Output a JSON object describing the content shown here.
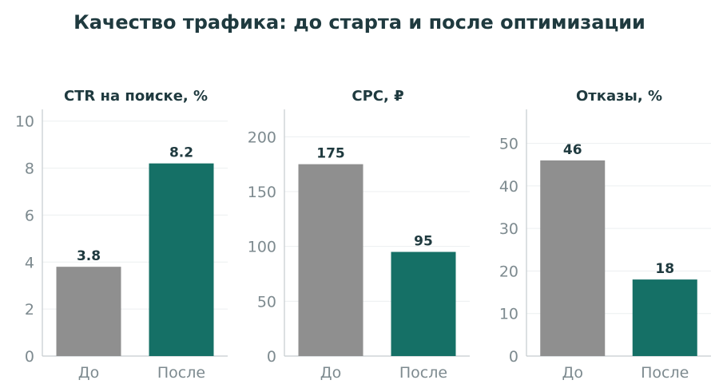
{
  "title": "Качество трафика: до старта и после оптимизации",
  "colors": {
    "before": "#8f8f8f",
    "after": "#157066"
  },
  "chart_data": [
    {
      "type": "bar",
      "title": "CTR на поиске, %",
      "categories": [
        "До",
        "После"
      ],
      "values": [
        3.8,
        8.2
      ],
      "value_labels": [
        "3.8",
        "8.2"
      ],
      "ylim": [
        0,
        10.5
      ],
      "yticks": [
        0,
        2,
        4,
        6,
        8,
        10
      ],
      "ytick_labels": [
        "0",
        "2",
        "4",
        "6",
        "8",
        "10"
      ],
      "grid": true
    },
    {
      "type": "bar",
      "title": "CPC, ₽",
      "categories": [
        "До",
        "После"
      ],
      "values": [
        175,
        95
      ],
      "value_labels": [
        "175",
        "95"
      ],
      "ylim": [
        0,
        225
      ],
      "yticks": [
        0,
        50,
        100,
        150,
        200
      ],
      "ytick_labels": [
        "0",
        "50",
        "100",
        "150",
        "200"
      ],
      "grid": true
    },
    {
      "type": "bar",
      "title": "Отказы, %",
      "categories": [
        "До",
        "После"
      ],
      "values": [
        46,
        18
      ],
      "value_labels": [
        "46",
        "18"
      ],
      "ylim": [
        0,
        58
      ],
      "yticks": [
        0,
        10,
        20,
        30,
        40,
        50
      ],
      "ytick_labels": [
        "0",
        "10",
        "20",
        "30",
        "40",
        "50"
      ],
      "grid": true
    }
  ]
}
